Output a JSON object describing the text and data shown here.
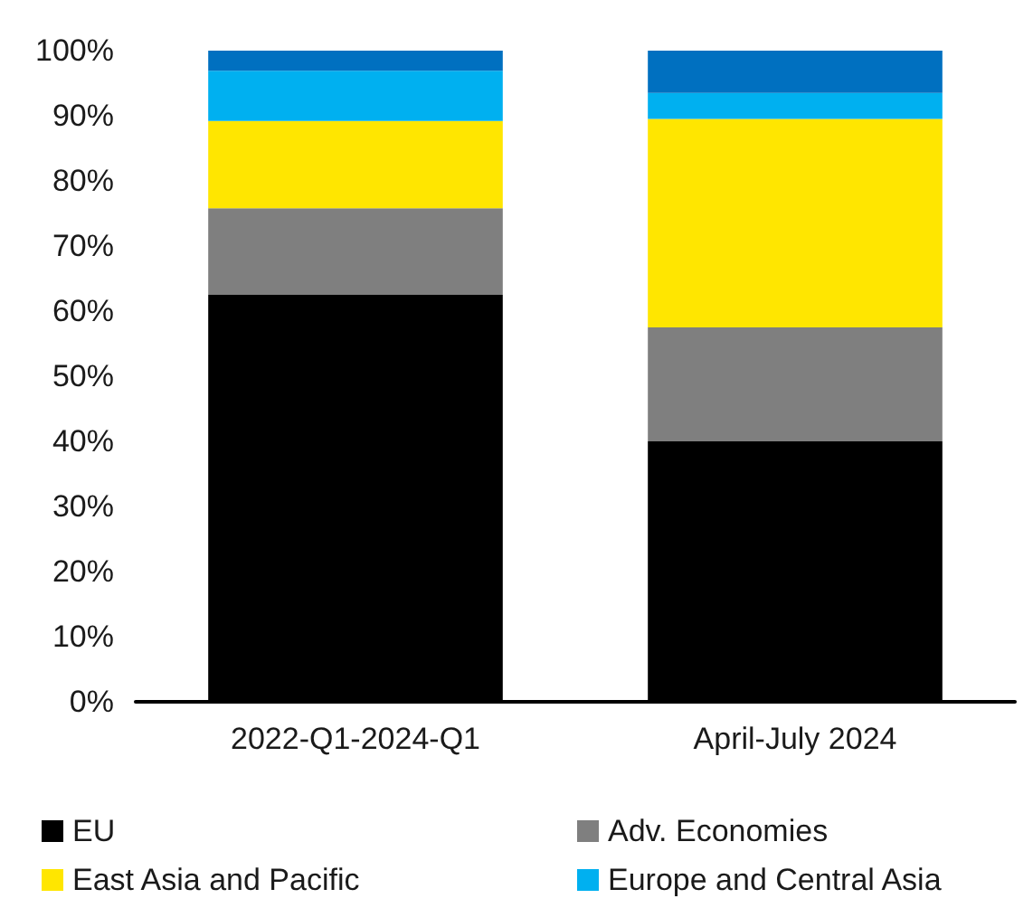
{
  "chart_data": {
    "type": "bar",
    "stacked": true,
    "categories": [
      "2022-Q1-2024-Q1",
      "April-July 2024"
    ],
    "series": [
      {
        "name": "EU",
        "color": "#000000",
        "values": [
          62.5,
          40
        ]
      },
      {
        "name": "Adv. Economies",
        "color": "#7f7f7f",
        "values": [
          13.3,
          17.5
        ]
      },
      {
        "name": "East Asia and Pacific",
        "color": "#ffe600",
        "values": [
          13.4,
          32
        ]
      },
      {
        "name": "Europe and Central Asia",
        "color": "#00b0f0",
        "values": [
          7.7,
          4
        ]
      },
      {
        "color": "#0070c0",
        "values": [
          3.1,
          6.5
        ]
      }
    ],
    "ylim": [
      0,
      100
    ],
    "yticks": [
      {
        "value": 0,
        "label": "0%"
      },
      {
        "value": 10,
        "label": "10%"
      },
      {
        "value": 20,
        "label": "20%"
      },
      {
        "value": 30,
        "label": "30%"
      },
      {
        "value": 40,
        "label": "40%"
      },
      {
        "value": 50,
        "label": "50%"
      },
      {
        "value": 60,
        "label": "60%"
      },
      {
        "value": 70,
        "label": "70%"
      },
      {
        "value": 80,
        "label": "80%"
      },
      {
        "value": 90,
        "label": "90%"
      },
      {
        "value": 100,
        "label": "100%"
      }
    ],
    "grid": false,
    "legend": "bottom"
  }
}
